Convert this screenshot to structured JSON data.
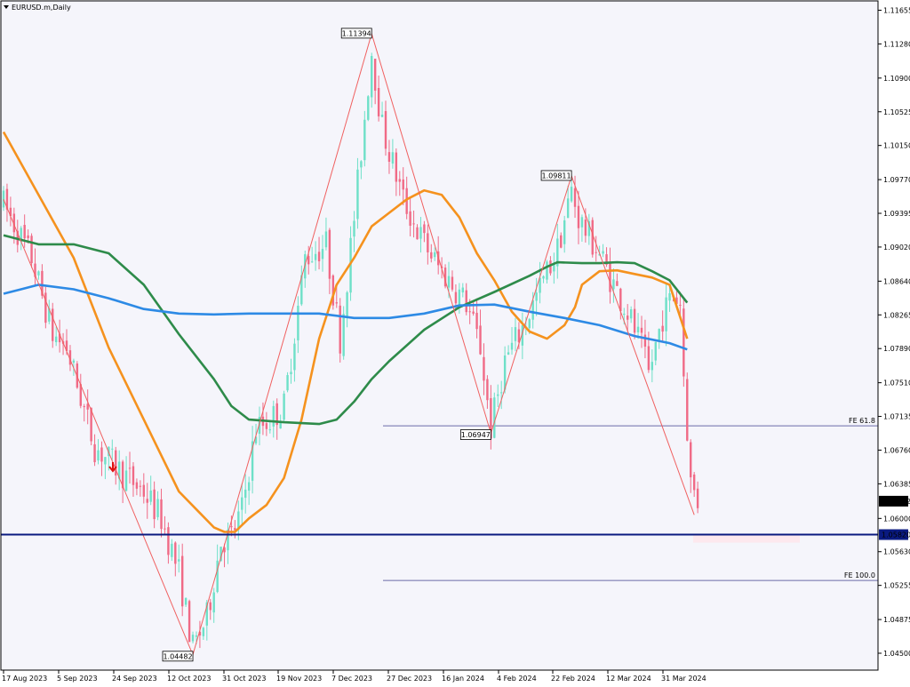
{
  "header": {
    "symbol": "EURUSD.m,Daily"
  },
  "colors": {
    "background": "#f5f5fb",
    "frame": "#000000",
    "bull": "#6ee0c8",
    "bear": "#f06a86",
    "zigzag": "#f06060",
    "ma_orange": "#f5921e",
    "ma_green": "#2e8b4a",
    "ma_blue": "#2d8ae5",
    "support_line": "#0a1a80",
    "fe_line": "#6b6ba8",
    "down_arrow": "#e01010"
  },
  "chart_data": {
    "type": "candlestick",
    "symbol": "EURUSD",
    "timeframe": "Daily",
    "ylim": [
      1.0435,
      1.1183
    ],
    "y_ticks": [
      "1.11655",
      "1.11280",
      "1.10900",
      "1.10525",
      "1.10150",
      "1.09770",
      "1.09395",
      "1.09020",
      "1.08640",
      "1.08265",
      "1.07890",
      "1.07510",
      "1.07135",
      "1.06760",
      "1.06385",
      "1.06000",
      "1.05630",
      "1.05255",
      "1.04875",
      "1.04500"
    ],
    "x_ticks": [
      "17 Aug 2023",
      "5 Sep 2023",
      "24 Sep 2023",
      "12 Oct 2023",
      "31 Oct 2023",
      "19 Nov 2023",
      "7 Dec 2023",
      "27 Dec 2023",
      "16 Jan 2024",
      "4 Feb 2024",
      "22 Feb 2024",
      "12 Mar 2024",
      "31 Mar 2024"
    ],
    "current_price": "1.06192",
    "support_price": "1.05820",
    "zigzag_points": [
      {
        "bar": 0,
        "price": 1.0955
      },
      {
        "bar": 54,
        "price": 1.04482,
        "label": "1.04482"
      },
      {
        "bar": 105,
        "price": 1.11394,
        "label": "1.11394"
      },
      {
        "bar": 139,
        "price": 1.06947,
        "label": "1.06947"
      },
      {
        "bar": 162,
        "price": 1.09811,
        "label": "1.09811"
      },
      {
        "bar": 197,
        "price": 1.0604
      }
    ],
    "fe_levels": [
      {
        "name": "FE 61.8",
        "price": 1.0703
      },
      {
        "name": "FE 100.0",
        "price": 1.0531
      }
    ],
    "moving_averages": [
      {
        "color": "orange",
        "points": [
          [
            0,
            1.103
          ],
          [
            10,
            1.096
          ],
          [
            20,
            1.089
          ],
          [
            30,
            1.079
          ],
          [
            40,
            1.071
          ],
          [
            50,
            1.063
          ],
          [
            55,
            1.061
          ],
          [
            60,
            1.059
          ],
          [
            63,
            1.0585
          ],
          [
            66,
            1.0585
          ],
          [
            70,
            1.06
          ],
          [
            75,
            1.0615
          ],
          [
            80,
            1.0645
          ],
          [
            85,
            1.071
          ],
          [
            90,
            1.08
          ],
          [
            95,
            1.086
          ],
          [
            100,
            1.089
          ],
          [
            105,
            1.0925
          ],
          [
            110,
            1.094
          ],
          [
            115,
            1.0955
          ],
          [
            120,
            1.0965
          ],
          [
            125,
            1.096
          ],
          [
            130,
            1.0935
          ],
          [
            135,
            1.0895
          ],
          [
            140,
            1.0865
          ],
          [
            145,
            1.083
          ],
          [
            150,
            1.0808
          ],
          [
            155,
            1.08
          ],
          [
            160,
            1.0815
          ],
          [
            163,
            1.0835
          ],
          [
            165,
            1.086
          ],
          [
            170,
            1.0875
          ],
          [
            175,
            1.0876
          ],
          [
            180,
            1.0872
          ],
          [
            185,
            1.0868
          ],
          [
            190,
            1.086
          ],
          [
            195,
            1.08
          ]
        ]
      },
      {
        "color": "green",
        "points": [
          [
            0,
            1.0915
          ],
          [
            10,
            1.0905
          ],
          [
            20,
            1.0905
          ],
          [
            30,
            1.0895
          ],
          [
            40,
            1.086
          ],
          [
            50,
            1.0805
          ],
          [
            60,
            1.0755
          ],
          [
            65,
            1.0725
          ],
          [
            70,
            1.071
          ],
          [
            80,
            1.0707
          ],
          [
            90,
            1.0705
          ],
          [
            95,
            1.071
          ],
          [
            100,
            1.073
          ],
          [
            105,
            1.0755
          ],
          [
            110,
            1.0775
          ],
          [
            120,
            1.081
          ],
          [
            130,
            1.0835
          ],
          [
            140,
            1.0852
          ],
          [
            150,
            1.087
          ],
          [
            155,
            1.088
          ],
          [
            158,
            1.0885
          ],
          [
            165,
            1.0884
          ],
          [
            170,
            1.0884
          ],
          [
            175,
            1.0885
          ],
          [
            180,
            1.0884
          ],
          [
            185,
            1.0875
          ],
          [
            190,
            1.0865
          ],
          [
            195,
            1.084
          ]
        ]
      },
      {
        "color": "blue",
        "points": [
          [
            0,
            1.085
          ],
          [
            5,
            1.0855
          ],
          [
            10,
            1.086
          ],
          [
            20,
            1.0855
          ],
          [
            30,
            1.0845
          ],
          [
            40,
            1.0833
          ],
          [
            50,
            1.0828
          ],
          [
            60,
            1.0827
          ],
          [
            70,
            1.0828
          ],
          [
            80,
            1.0828
          ],
          [
            90,
            1.0828
          ],
          [
            100,
            1.0823
          ],
          [
            110,
            1.0823
          ],
          [
            120,
            1.0828
          ],
          [
            130,
            1.0837
          ],
          [
            140,
            1.0838
          ],
          [
            150,
            1.083
          ],
          [
            160,
            1.0823
          ],
          [
            170,
            1.0815
          ],
          [
            180,
            1.0803
          ],
          [
            190,
            1.0795
          ],
          [
            195,
            1.0788
          ]
        ]
      }
    ],
    "anchors": [
      [
        0,
        1.095
      ],
      [
        8,
        1.089
      ],
      [
        14,
        1.0805
      ],
      [
        18,
        1.079
      ],
      [
        26,
        1.068
      ],
      [
        34,
        1.065
      ],
      [
        40,
        1.063
      ],
      [
        45,
        1.06
      ],
      [
        50,
        1.054
      ],
      [
        54,
        1.0455
      ],
      [
        58,
        1.049
      ],
      [
        62,
        1.0575
      ],
      [
        65,
        1.058
      ],
      [
        68,
        1.061
      ],
      [
        72,
        1.07
      ],
      [
        76,
        1.071
      ],
      [
        80,
        1.0725
      ],
      [
        86,
        1.089
      ],
      [
        92,
        1.0905
      ],
      [
        96,
        1.08
      ],
      [
        100,
        1.0935
      ],
      [
        105,
        1.112
      ],
      [
        108,
        1.1035
      ],
      [
        114,
        1.0955
      ],
      [
        118,
        1.092
      ],
      [
        124,
        1.088
      ],
      [
        128,
        1.086
      ],
      [
        132,
        1.084
      ],
      [
        136,
        1.079
      ],
      [
        139,
        1.07
      ],
      [
        143,
        1.0775
      ],
      [
        149,
        1.082
      ],
      [
        154,
        1.0865
      ],
      [
        158,
        1.09
      ],
      [
        162,
        1.0965
      ],
      [
        164,
        1.0935
      ],
      [
        166,
        1.092
      ],
      [
        170,
        1.0895
      ],
      [
        174,
        1.086
      ],
      [
        178,
        1.083
      ],
      [
        182,
        1.079
      ],
      [
        184,
        1.076
      ],
      [
        188,
        1.0825
      ],
      [
        191,
        1.085
      ],
      [
        193,
        1.084
      ],
      [
        194,
        1.076
      ],
      [
        196,
        1.064
      ],
      [
        198,
        1.0619
      ]
    ]
  }
}
